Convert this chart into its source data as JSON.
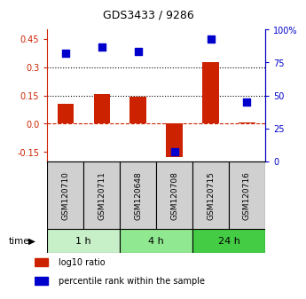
{
  "title": "GDS3433 / 9286",
  "samples": [
    "GSM120710",
    "GSM120711",
    "GSM120648",
    "GSM120708",
    "GSM120715",
    "GSM120716"
  ],
  "log10_ratio": [
    0.105,
    0.155,
    0.145,
    -0.175,
    0.325,
    0.005
  ],
  "percentile_rank": [
    82,
    87,
    83,
    7,
    93,
    45
  ],
  "groups": [
    {
      "label": "1 h",
      "indices": [
        0,
        1
      ],
      "color": "#c8f0c8"
    },
    {
      "label": "4 h",
      "indices": [
        2,
        3
      ],
      "color": "#90e890"
    },
    {
      "label": "24 h",
      "indices": [
        4,
        5
      ],
      "color": "#44cc44"
    }
  ],
  "left_ylim": [
    -0.2,
    0.5
  ],
  "right_ylim": [
    0,
    100
  ],
  "left_yticks": [
    -0.15,
    0.0,
    0.15,
    0.3,
    0.45
  ],
  "right_yticks": [
    0,
    25,
    50,
    75,
    100
  ],
  "right_yticklabels": [
    "0",
    "25",
    "50",
    "75",
    "100%"
  ],
  "bar_color": "#cc2200",
  "dot_color": "#0000cc",
  "bar_width": 0.45,
  "dot_size": 40,
  "background_color": "#ffffff",
  "sample_box_color": "#d0d0d0",
  "legend_items": [
    {
      "color": "#cc2200",
      "label": "log10 ratio"
    },
    {
      "color": "#0000cc",
      "label": "percentile rank within the sample"
    }
  ]
}
